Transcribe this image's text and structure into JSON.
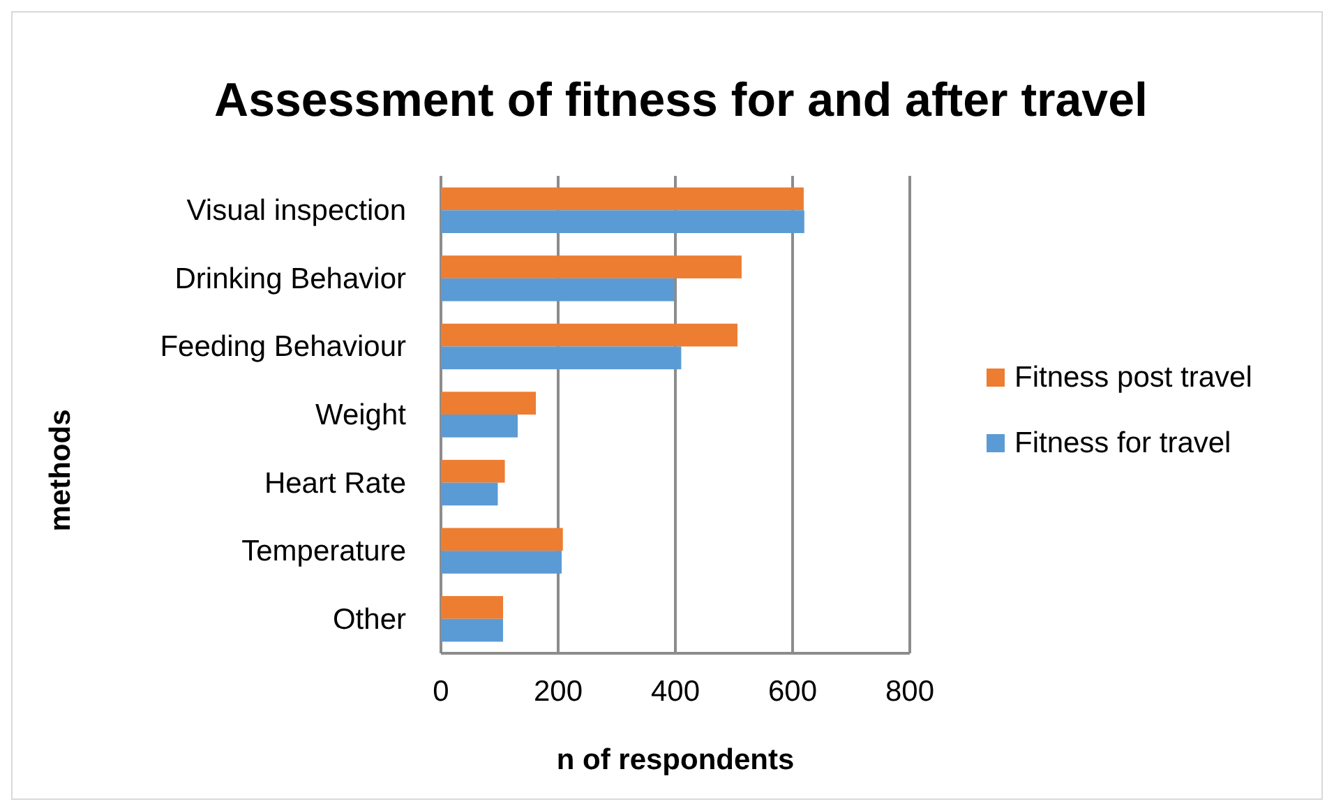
{
  "chart_data": {
    "type": "bar",
    "orientation": "horizontal",
    "title": "Assessment of fitness for and after travel",
    "xlabel": "n of respondents",
    "ylabel": "methods",
    "categories": [
      "Visual inspection",
      "Drinking Behavior",
      "Feeding Behaviour",
      "Weight",
      "Heart Rate",
      "Temperature",
      "Other"
    ],
    "series": [
      {
        "name": "Fitness post travel",
        "color": "#ed7d31",
        "values": [
          619,
          513,
          506,
          162,
          109,
          208,
          106
        ]
      },
      {
        "name": "Fitness for travel",
        "color": "#5b9bd5",
        "values": [
          620,
          398,
          410,
          131,
          97,
          206,
          106
        ]
      }
    ],
    "xlim": [
      0,
      800
    ],
    "xticks": [
      0,
      200,
      400,
      600,
      800
    ],
    "grid": "x",
    "legend": "right"
  }
}
